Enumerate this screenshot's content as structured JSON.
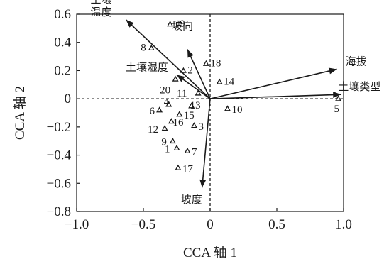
{
  "chart_data": {
    "type": "scatter",
    "xlabel": "CCA 轴 1",
    "ylabel": "CCA 轴 2",
    "xlim": [
      -1.0,
      1.0
    ],
    "ylim": [
      -0.8,
      0.6
    ],
    "x_ticks": [
      -1.0,
      -0.5,
      0,
      0.5,
      1.0
    ],
    "x_tick_labels": [
      "−1.0",
      "−0.5",
      "0",
      "0.5",
      "1.0"
    ],
    "y_ticks": [
      -0.8,
      -0.6,
      -0.4,
      -0.2,
      0,
      0.2,
      0.4,
      0.6
    ],
    "y_tick_labels": [
      "−0.8",
      "−0.6",
      "−0.4",
      "−0.2",
      "0",
      "0.2",
      "0.4",
      "0.6"
    ],
    "reference_lines": {
      "x": 0,
      "y": 0,
      "style": "dashed"
    },
    "sites": [
      {
        "label": "1",
        "x": -0.25,
        "y": -0.35
      },
      {
        "label": "2",
        "x": -0.2,
        "y": 0.2
      },
      {
        "label": "3",
        "x": -0.12,
        "y": -0.19
      },
      {
        "label": "4",
        "x": -0.31,
        "y": -0.04
      },
      {
        "label": "5",
        "x": 0.96,
        "y": 0.0
      },
      {
        "label": "6",
        "x": -0.38,
        "y": -0.08
      },
      {
        "label": "7",
        "x": -0.17,
        "y": -0.37
      },
      {
        "label": "8",
        "x": -0.44,
        "y": 0.36
      },
      {
        "label": "9",
        "x": -0.28,
        "y": -0.3
      },
      {
        "label": "10",
        "x": 0.13,
        "y": -0.07
      },
      {
        "label": "11",
        "x": -0.09,
        "y": 0.04
      },
      {
        "label": "12",
        "x": -0.34,
        "y": -0.21
      },
      {
        "label": "13",
        "x": -0.14,
        "y": -0.05
      },
      {
        "label": "14",
        "x": 0.07,
        "y": 0.12
      },
      {
        "label": "15",
        "x": -0.23,
        "y": -0.11
      },
      {
        "label": "16",
        "x": -0.29,
        "y": -0.16
      },
      {
        "label": "17",
        "x": -0.24,
        "y": -0.49
      },
      {
        "label": "18",
        "x": -0.03,
        "y": 0.25
      },
      {
        "label": "19",
        "x": -0.3,
        "y": 0.53
      },
      {
        "label": "20",
        "x": -0.26,
        "y": 0.14
      }
    ],
    "env_vectors": [
      {
        "label": "土壤温度",
        "x": -0.63,
        "y": 0.56
      },
      {
        "label": "坡向",
        "x": -0.17,
        "y": 0.35
      },
      {
        "label": "土壤湿度",
        "x": -0.25,
        "y": 0.17
      },
      {
        "label": "海拔",
        "x": 0.95,
        "y": 0.21
      },
      {
        "label": "土壤类型",
        "x": 0.98,
        "y": 0.03
      },
      {
        "label": "坡度",
        "x": -0.06,
        "y": -0.63
      }
    ]
  }
}
